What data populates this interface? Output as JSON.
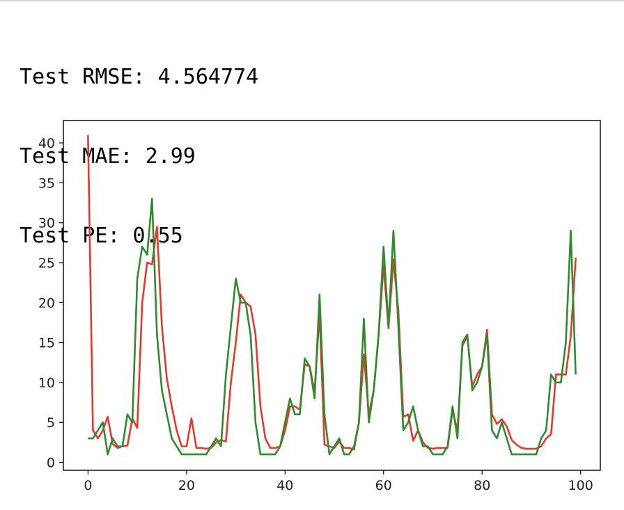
{
  "output": {
    "rmse_line": "Test RMSE: 4.564774",
    "mae_line": "Test MAE: 2.99",
    "pe_line": "Test PE: 0.55"
  },
  "colors": {
    "red_series": "#e8382e",
    "green_series": "#2e8b2e",
    "axes": "#000000"
  },
  "chart_data": {
    "type": "line",
    "title": "",
    "xlabel": "",
    "ylabel": "",
    "xlim": [
      -5,
      104
    ],
    "ylim": [
      -1,
      42.8
    ],
    "grid": false,
    "xticks": [
      0,
      20,
      40,
      60,
      80,
      100
    ],
    "yticks": [
      0,
      5,
      10,
      15,
      20,
      25,
      30,
      35,
      40
    ],
    "series": [
      {
        "color": "#e8382e",
        "x": [
          0,
          1,
          2,
          3,
          4,
          5,
          6,
          7,
          8,
          9,
          10,
          11,
          12,
          13,
          14,
          15,
          16,
          17,
          18,
          19,
          20,
          21,
          22,
          23,
          24,
          25,
          26,
          27,
          28,
          29,
          30,
          31,
          32,
          33,
          34,
          35,
          36,
          37,
          38,
          39,
          40,
          41,
          42,
          43,
          44,
          45,
          46,
          47,
          48,
          49,
          50,
          51,
          52,
          53,
          54,
          55,
          56,
          57,
          58,
          59,
          60,
          61,
          62,
          63,
          64,
          65,
          66,
          67,
          68,
          69,
          70,
          71,
          72,
          73,
          74,
          75,
          76,
          77,
          78,
          79,
          80,
          81,
          82,
          83,
          84,
          85,
          86,
          87,
          88,
          89,
          90,
          91,
          92,
          93,
          94,
          95,
          96,
          97,
          98,
          99
        ],
        "values": [
          41,
          4,
          3,
          4,
          5.7,
          2.3,
          1.8,
          2,
          2.1,
          5.5,
          4.3,
          20,
          25,
          24.8,
          29.5,
          17,
          10.5,
          7,
          4,
          2,
          2,
          5.5,
          1.8,
          1.8,
          1.7,
          1.8,
          2.5,
          2.8,
          2.6,
          10,
          15,
          21,
          20,
          19.5,
          16,
          7,
          3,
          1.8,
          1.8,
          2,
          4,
          7,
          7,
          6.6,
          12.3,
          12,
          8.8,
          18.8,
          2.2,
          2,
          1.8,
          2.6,
          1.8,
          1.8,
          1.6,
          5,
          13.5,
          6,
          9,
          16,
          24.7,
          16.8,
          25.4,
          19,
          5.7,
          6,
          2.7,
          4,
          2.5,
          1.8,
          1.7,
          1.8,
          1.8,
          1.8,
          6.5,
          4,
          14.6,
          15.8,
          9.5,
          11,
          12,
          16.6,
          6,
          4.8,
          5.4,
          4.5,
          2.8,
          2.2,
          1.8,
          1.7,
          1.7,
          1.7,
          2,
          3,
          3.5,
          11,
          11,
          11,
          15.8,
          25.6
        ]
      },
      {
        "color": "#2e8b2e",
        "x": [
          0,
          1,
          2,
          3,
          4,
          5,
          6,
          7,
          8,
          9,
          10,
          11,
          12,
          13,
          14,
          15,
          16,
          17,
          18,
          19,
          20,
          21,
          22,
          23,
          24,
          25,
          26,
          27,
          28,
          29,
          30,
          31,
          32,
          33,
          34,
          35,
          36,
          37,
          38,
          39,
          40,
          41,
          42,
          43,
          44,
          45,
          46,
          47,
          48,
          49,
          50,
          51,
          52,
          53,
          54,
          55,
          56,
          57,
          58,
          59,
          60,
          61,
          62,
          63,
          64,
          65,
          66,
          67,
          68,
          69,
          70,
          71,
          72,
          73,
          74,
          75,
          76,
          77,
          78,
          79,
          80,
          81,
          82,
          83,
          84,
          85,
          86,
          87,
          88,
          89,
          90,
          91,
          92,
          93,
          94,
          95,
          96,
          97,
          98,
          99
        ],
        "values": [
          3,
          3,
          4,
          5,
          1,
          3,
          2,
          2,
          6,
          5,
          23,
          27,
          26,
          33,
          16,
          9,
          6,
          3,
          2,
          1,
          1,
          1,
          1,
          1,
          1,
          2,
          3,
          2,
          11,
          17,
          23,
          20,
          20,
          16,
          5,
          1,
          1,
          1,
          1,
          2,
          5,
          8,
          6,
          6,
          13,
          12,
          8,
          21,
          6,
          1,
          2,
          3,
          1,
          1,
          2,
          5,
          18,
          5,
          9,
          16,
          27,
          17,
          29,
          17,
          4,
          5,
          7,
          4,
          2,
          2,
          1,
          1,
          1,
          2,
          7,
          3,
          15,
          16,
          9,
          10,
          12,
          16,
          4,
          3,
          5,
          3,
          1,
          1,
          1,
          1,
          1,
          1,
          3,
          4,
          11,
          10,
          10,
          15,
          29,
          11
        ]
      }
    ]
  }
}
